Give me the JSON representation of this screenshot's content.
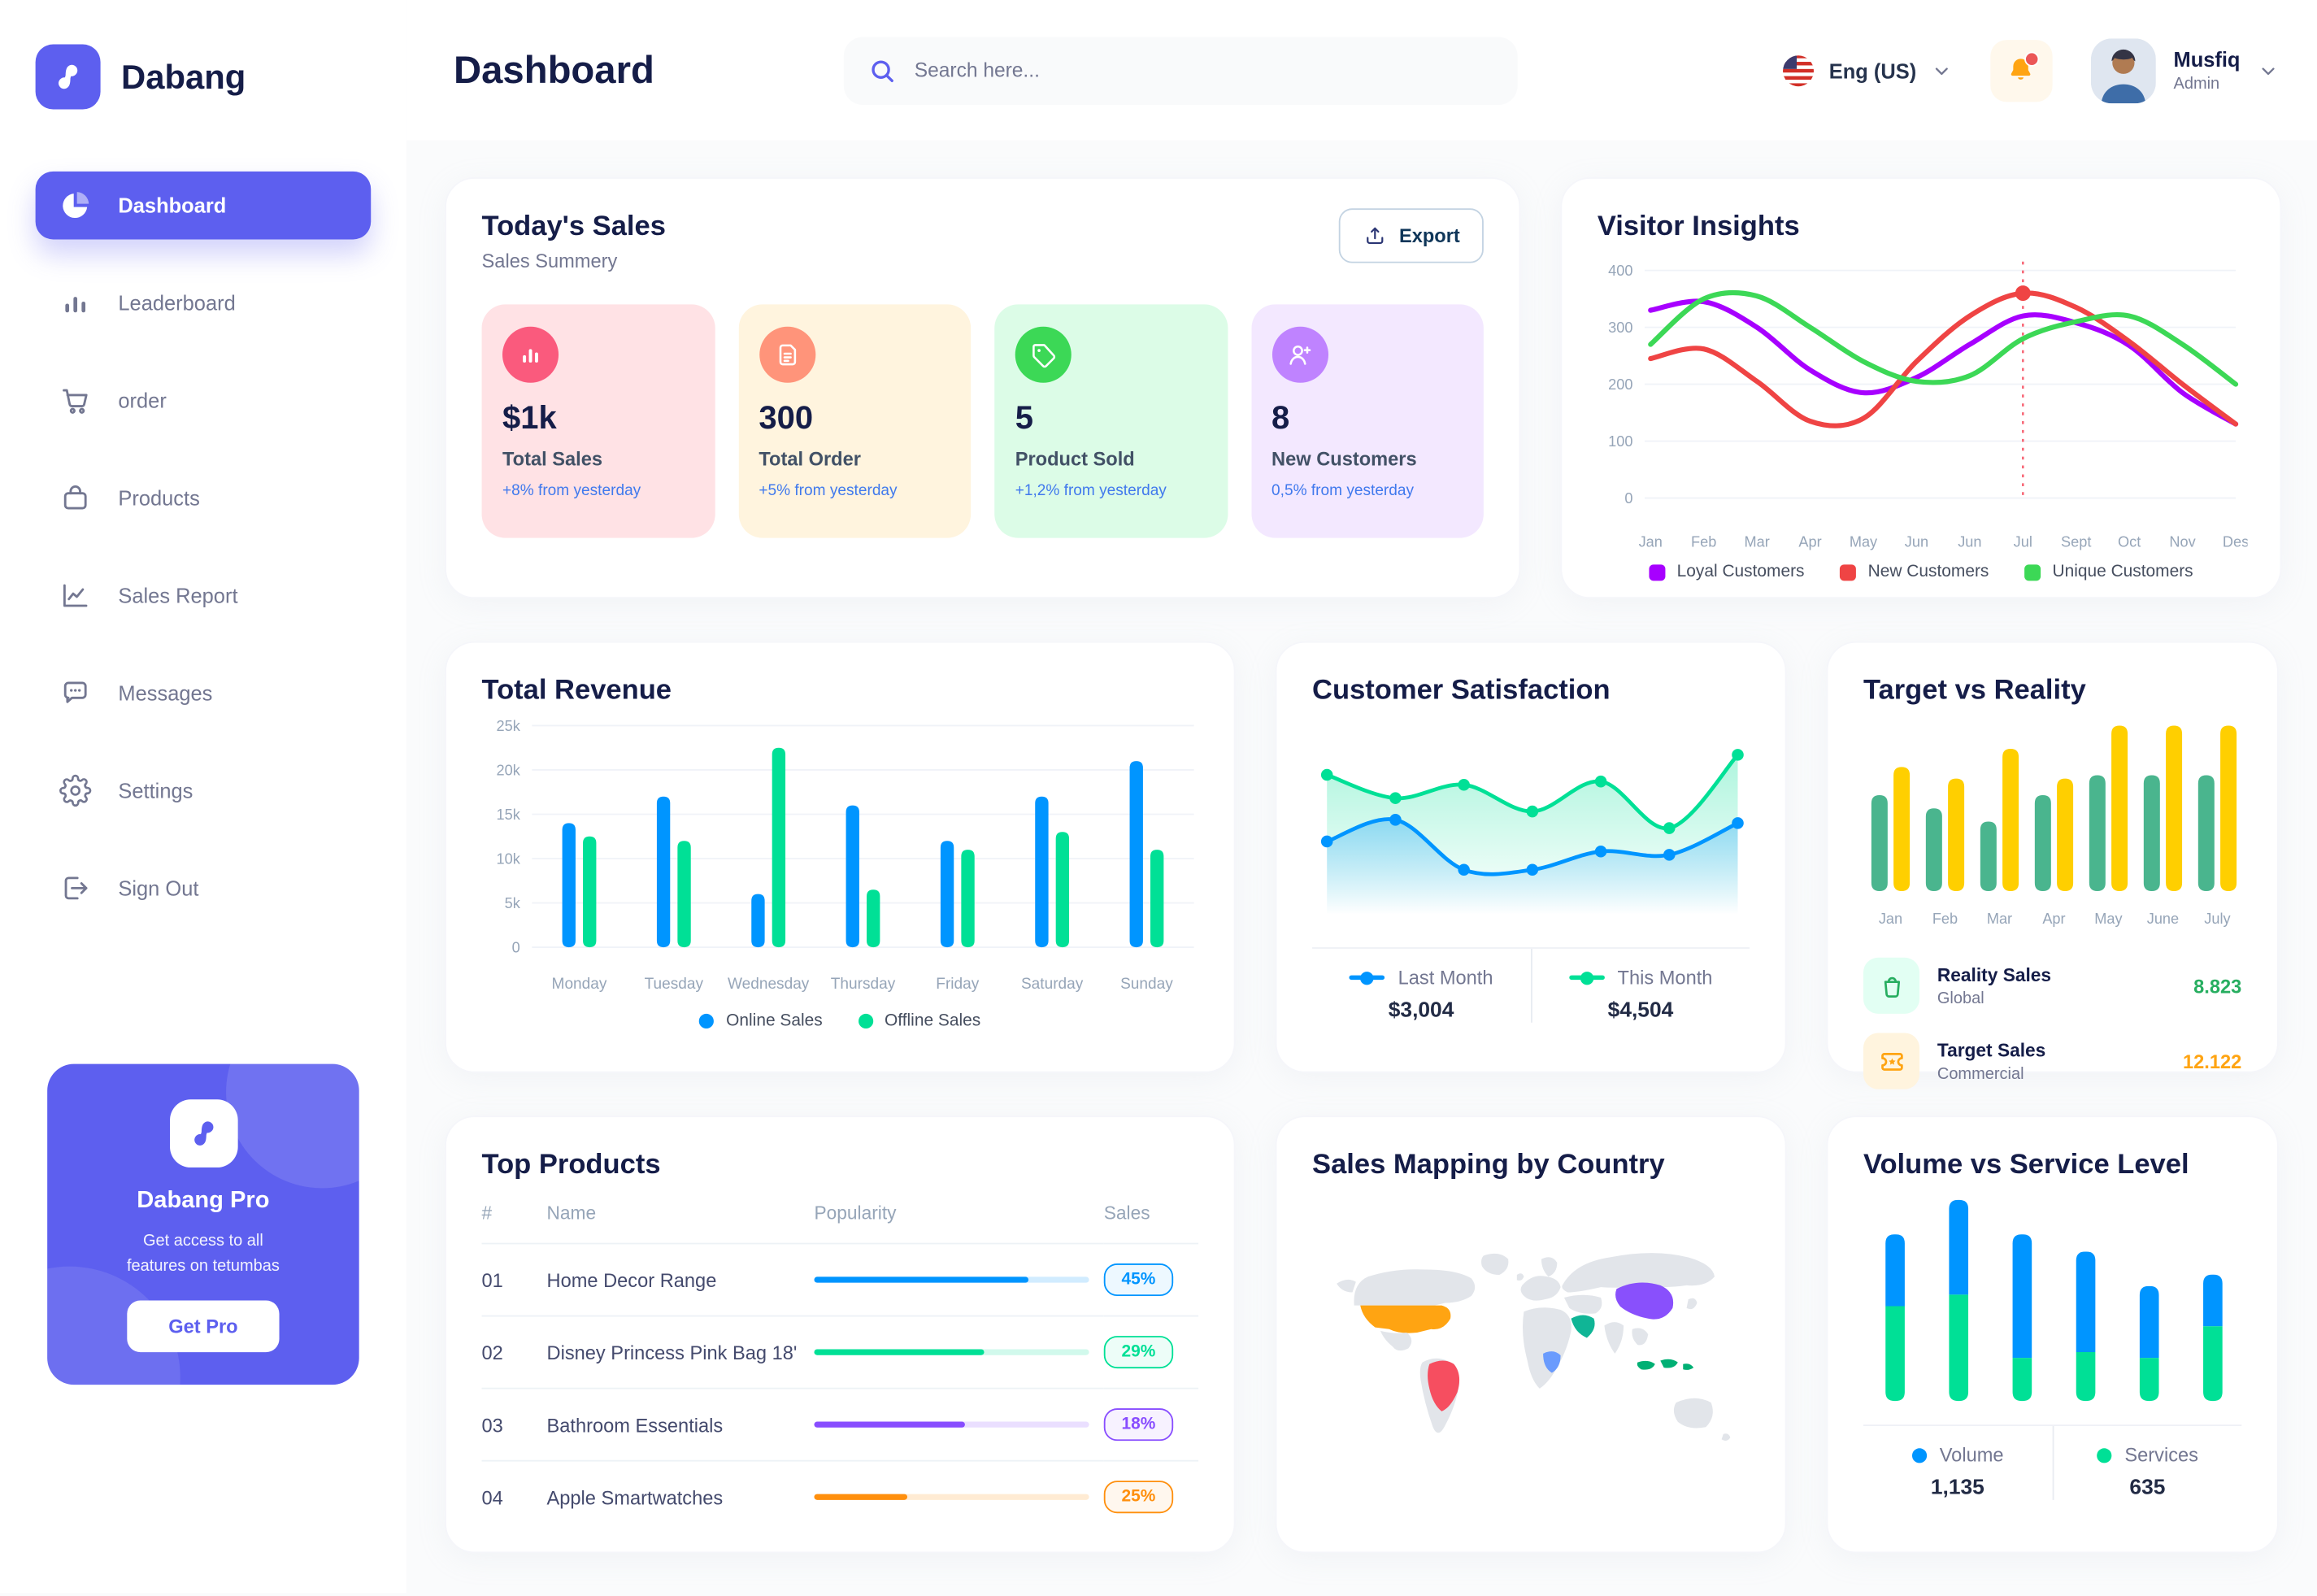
{
  "brand": {
    "name": "Dabang"
  },
  "topbar": {
    "title": "Dashboard",
    "search": {
      "placeholder": "Search here..."
    },
    "language": {
      "label": "Eng (US)"
    },
    "user": {
      "name": "Musfiq",
      "role": "Admin"
    }
  },
  "sidebar": {
    "items": [
      {
        "label": "Dashboard",
        "icon": "pie-chart-icon",
        "active": true
      },
      {
        "label": "Leaderboard",
        "icon": "bar-chart-icon",
        "active": false
      },
      {
        "label": "order",
        "icon": "cart-icon",
        "active": false
      },
      {
        "label": "Products",
        "icon": "bag-icon",
        "active": false
      },
      {
        "label": "Sales Report",
        "icon": "line-chart-icon",
        "active": false
      },
      {
        "label": "Messages",
        "icon": "message-icon",
        "active": false
      },
      {
        "label": "Settings",
        "icon": "gear-icon",
        "active": false
      },
      {
        "label": "Sign Out",
        "icon": "sign-out-icon",
        "active": false
      }
    ],
    "promo": {
      "title": "Dabang Pro",
      "description": "Get access to all\nfeatures on tetumbas",
      "button_label": "Get Pro"
    }
  },
  "todays_sales": {
    "title": "Today's Sales",
    "subtitle": "Sales Summery",
    "export_label": "Export",
    "cards": [
      {
        "value": "$1k",
        "label": "Total Sales",
        "trend": "+8% from yesterday",
        "bg": "#FFE2E5",
        "icon_bg": "#FA5A7D",
        "icon": "chart-bar-icon"
      },
      {
        "value": "300",
        "label": "Total Order",
        "trend": "+5% from yesterday",
        "bg": "#FFF4DE",
        "icon_bg": "#FF947A",
        "icon": "order-file-icon"
      },
      {
        "value": "5",
        "label": "Product Sold",
        "trend": "+1,2% from yesterday",
        "bg": "#DCFCE7",
        "icon_bg": "#3CD856",
        "icon": "tag-icon"
      },
      {
        "value": "8",
        "label": "New Customers",
        "trend": "0,5% from yesterday",
        "bg": "#F3E8FF",
        "icon_bg": "#BF83FF",
        "icon": "new-customer-icon"
      }
    ]
  },
  "top_products": {
    "title": "Top Products",
    "headers": [
      "#",
      "Name",
      "Popularity",
      "Sales"
    ],
    "rows": [
      {
        "rank": "01",
        "name": "Home Decor Range",
        "popularity": 78,
        "sales": "45%",
        "color": "#0095FF"
      },
      {
        "rank": "02",
        "name": "Disney Princess Pink Bag 18'",
        "popularity": 62,
        "sales": "29%",
        "color": "#00E096"
      },
      {
        "rank": "03",
        "name": "Bathroom Essentials",
        "popularity": 55,
        "sales": "18%",
        "color": "#884DFF"
      },
      {
        "rank": "04",
        "name": "Apple Smartwatches",
        "popularity": 34,
        "sales": "25%",
        "color": "#FF8F0D"
      }
    ]
  },
  "chart_data": [
    {
      "id": "visitor-insights",
      "type": "line",
      "title": "Visitor Insights",
      "x": [
        "Jan",
        "Feb",
        "Mar",
        "Apr",
        "May",
        "Jun",
        "Jun",
        "Jul",
        "Sept",
        "Oct",
        "Nov",
        "Des"
      ],
      "ylim": [
        0,
        400
      ],
      "yticks": [
        0,
        100,
        200,
        300,
        400
      ],
      "grid": true,
      "legend_position": "bottom",
      "series": [
        {
          "name": "Loyal Customers",
          "color": "#A700FF",
          "values": [
            330,
            345,
            300,
            225,
            185,
            212,
            270,
            320,
            308,
            268,
            185,
            130
          ]
        },
        {
          "name": "New Customers",
          "color": "#EF4444",
          "values": [
            245,
            262,
            205,
            135,
            140,
            240,
            320,
            360,
            335,
            275,
            200,
            130
          ]
        },
        {
          "name": "Unique Customers",
          "color": "#3CD856",
          "values": [
            270,
            350,
            355,
            300,
            240,
            205,
            215,
            280,
            310,
            320,
            270,
            200
          ]
        }
      ],
      "marker": {
        "series": "New Customers",
        "x_index": 7
      }
    },
    {
      "id": "total-revenue",
      "type": "bar",
      "title": "Total Revenue",
      "categories": [
        "Monday",
        "Tuesday",
        "Wednesday",
        "Thursday",
        "Friday",
        "Saturday",
        "Sunday"
      ],
      "ylim": [
        0,
        25000
      ],
      "yticks": [
        0,
        5000,
        10000,
        15000,
        20000,
        25000
      ],
      "ytick_labels": [
        "0",
        "5k",
        "10k",
        "15k",
        "20k",
        "25k"
      ],
      "grid": true,
      "legend_position": "bottom",
      "series": [
        {
          "name": "Online Sales",
          "color": "#0095FF",
          "values": [
            14000,
            17000,
            6000,
            16000,
            12000,
            17000,
            21000
          ]
        },
        {
          "name": "Offline Sales",
          "color": "#00E096",
          "values": [
            12500,
            12000,
            22500,
            6500,
            11000,
            13000,
            11000
          ]
        }
      ]
    },
    {
      "id": "customer-satisfaction",
      "type": "area",
      "title": "Customer Satisfaction",
      "ylim": [
        0,
        110
      ],
      "legend_position": "bottom",
      "series": [
        {
          "name": "This Month",
          "color": "#00E096",
          "total": "$4,504",
          "values": [
            84,
            70,
            78,
            62,
            80,
            52,
            96
          ]
        },
        {
          "name": "Last Month",
          "color": "#0095FF",
          "total": "$3,004",
          "values": [
            44,
            57,
            27,
            27,
            38,
            36,
            55
          ]
        }
      ],
      "legend_order": [
        "Last Month",
        "This Month"
      ]
    },
    {
      "id": "target-vs-reality",
      "type": "bar",
      "title": "Target vs Reality",
      "categories": [
        "Jan",
        "Feb",
        "Mar",
        "Apr",
        "May",
        "June",
        "July"
      ],
      "ylim": [
        0,
        100
      ],
      "grid": false,
      "series": [
        {
          "name": "Reality Sales",
          "subtitle": "Global",
          "color": "#4AB58E",
          "value_label": "8.823",
          "value_color": "#27AE60",
          "icon": "reality-bag-icon",
          "icon_bg": "#E2FFF3",
          "values": [
            58,
            50,
            42,
            58,
            70,
            70,
            70
          ]
        },
        {
          "name": "Target Sales",
          "subtitle": "Commercial",
          "color": "#FFCF00",
          "value_label": "12.122",
          "value_color": "#FFA412",
          "icon": "target-ticket-icon",
          "icon_bg": "#FFF4DE",
          "values": [
            75,
            68,
            86,
            68,
            100,
            100,
            100
          ]
        }
      ]
    },
    {
      "id": "sales-mapping",
      "type": "map",
      "title": "Sales Mapping by Country",
      "countries": [
        {
          "key": "usa",
          "name": "United States",
          "color": "#FFA412"
        },
        {
          "key": "brazil",
          "name": "Brazil",
          "color": "#F64E60"
        },
        {
          "key": "saudi_arabia",
          "name": "Saudi Arabia",
          "color": "#10B596"
        },
        {
          "key": "dr_congo",
          "name": "DR Congo",
          "color": "#6A9BFD"
        },
        {
          "key": "china",
          "name": "China",
          "color": "#8950FC"
        },
        {
          "key": "indonesia",
          "name": "Indonesia",
          "color": "#00B074"
        }
      ]
    },
    {
      "id": "volume-vs-service",
      "type": "stacked-bar",
      "title": "Volume vs Service Level",
      "legend_position": "bottom",
      "series": [
        {
          "name": "Volume",
          "color": "#0095FF",
          "total": "1,135",
          "values": [
            25,
            33,
            43,
            35,
            25,
            18
          ]
        },
        {
          "name": "Services",
          "color": "#00E096",
          "total": "635",
          "values": [
            33,
            37,
            15,
            17,
            15,
            26
          ]
        }
      ]
    }
  ]
}
